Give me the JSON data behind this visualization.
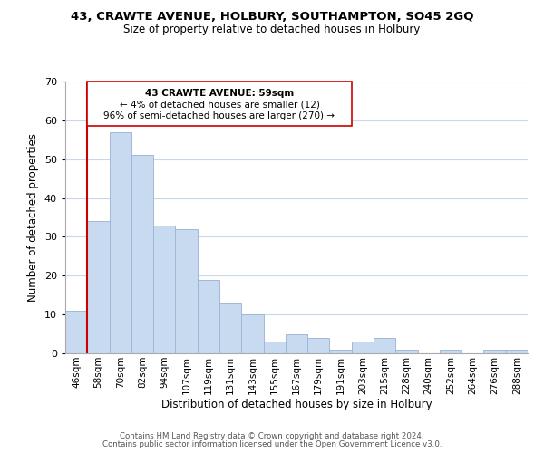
{
  "title": "43, CRAWTE AVENUE, HOLBURY, SOUTHAMPTON, SO45 2GQ",
  "subtitle": "Size of property relative to detached houses in Holbury",
  "xlabel": "Distribution of detached houses by size in Holbury",
  "ylabel": "Number of detached properties",
  "bar_color": "#c8daf0",
  "bar_edge_color": "#a0b8d8",
  "bins": [
    "46sqm",
    "58sqm",
    "70sqm",
    "82sqm",
    "94sqm",
    "107sqm",
    "119sqm",
    "131sqm",
    "143sqm",
    "155sqm",
    "167sqm",
    "179sqm",
    "191sqm",
    "203sqm",
    "215sqm",
    "228sqm",
    "240sqm",
    "252sqm",
    "264sqm",
    "276sqm",
    "288sqm"
  ],
  "values": [
    11,
    34,
    57,
    51,
    33,
    32,
    19,
    13,
    10,
    3,
    5,
    4,
    1,
    3,
    4,
    1,
    0,
    1,
    0,
    1,
    1
  ],
  "ylim": [
    0,
    70
  ],
  "yticks": [
    0,
    10,
    20,
    30,
    40,
    50,
    60,
    70
  ],
  "vline_bin_index": 1,
  "marker_label_line1": "43 CRAWTE AVENUE: 59sqm",
  "marker_label_line2": "← 4% of detached houses are smaller (12)",
  "marker_label_line3": "96% of semi-detached houses are larger (270) →",
  "vline_color": "#cc0000",
  "background_color": "#ffffff",
  "grid_color": "#c8d8e8",
  "footer_line1": "Contains HM Land Registry data © Crown copyright and database right 2024.",
  "footer_line2": "Contains public sector information licensed under the Open Government Licence v3.0."
}
